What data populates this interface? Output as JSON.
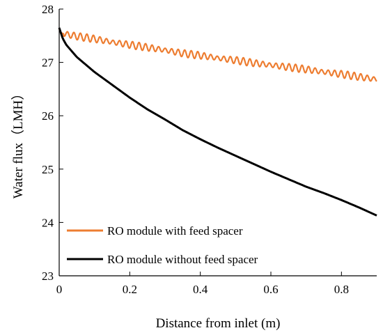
{
  "chart_data": {
    "type": "line",
    "title": "",
    "xlabel": "Distance from inlet (m)",
    "ylabel": "Water flux（LMH）",
    "xlim": [
      0,
      0.9
    ],
    "ylim": [
      23,
      28
    ],
    "x_ticks": [
      "0",
      "0.2",
      "0.4",
      "0.6",
      "0.8"
    ],
    "y_ticks": [
      "23",
      "24",
      "25",
      "26",
      "27",
      "28"
    ],
    "legend_position": "bottom-left",
    "grid": false,
    "series": [
      {
        "name": "RO module with feed spacer",
        "color": "#ED7D31",
        "x": [
          0,
          0.005,
          0.01,
          0.05,
          0.1,
          0.15,
          0.2,
          0.25,
          0.3,
          0.35,
          0.4,
          0.45,
          0.5,
          0.55,
          0.6,
          0.65,
          0.7,
          0.75,
          0.8,
          0.85,
          0.9
        ],
        "y": [
          27.62,
          27.56,
          27.54,
          27.49,
          27.44,
          27.38,
          27.33,
          27.28,
          27.23,
          27.17,
          27.13,
          27.08,
          27.04,
          26.99,
          26.95,
          26.91,
          26.87,
          26.82,
          26.78,
          26.73,
          26.68
        ],
        "oscillating": true
      },
      {
        "name": "RO module without feed spacer",
        "color": "#000000",
        "x": [
          0,
          0.005,
          0.01,
          0.02,
          0.05,
          0.1,
          0.15,
          0.2,
          0.25,
          0.3,
          0.35,
          0.4,
          0.45,
          0.5,
          0.55,
          0.6,
          0.65,
          0.7,
          0.75,
          0.8,
          0.85,
          0.9
        ],
        "y": [
          27.65,
          27.55,
          27.45,
          27.33,
          27.1,
          26.82,
          26.58,
          26.34,
          26.12,
          25.93,
          25.73,
          25.56,
          25.4,
          25.25,
          25.1,
          24.95,
          24.81,
          24.67,
          24.55,
          24.42,
          24.28,
          24.13
        ]
      }
    ]
  }
}
